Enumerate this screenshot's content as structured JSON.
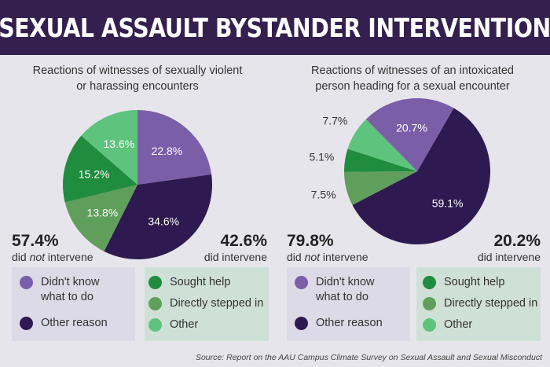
{
  "title": "SEXUAL ASSAULT BYSTANDER INTERVENTION",
  "colors": {
    "header": "#34204f",
    "didnt_know": "#7b5ea8",
    "other_reason": "#2e1a50",
    "sought_help": "#1f8c3e",
    "directly_stepped_in": "#5f9e5b",
    "other": "#5ec37c"
  },
  "legend_not": [
    {
      "label": "Didn't know what to do",
      "line1": "Didn't know",
      "line2": "what to do",
      "color": "#7b5ea8"
    },
    {
      "label": "Other reason",
      "color": "#2e1a50"
    }
  ],
  "legend_did": [
    {
      "label": "Sought help",
      "color": "#1f8c3e"
    },
    {
      "label": "Directly stepped in",
      "color": "#5f9e5b"
    },
    {
      "label": "Other",
      "color": "#5ec37c"
    }
  ],
  "chart_data": [
    {
      "type": "pie",
      "title": "Reactions of witnesses of sexually violent or harassing encounters",
      "title_line1": "Reactions of witnesses of sexually violent",
      "title_line2": "or harassing encounters",
      "slices": [
        {
          "name": "Didn't know what to do",
          "value": 22.8,
          "label": "22.8%",
          "color": "#7b5ea8"
        },
        {
          "name": "Other reason",
          "value": 34.6,
          "label": "34.6%",
          "color": "#2e1a50"
        },
        {
          "name": "Directly stepped in",
          "value": 13.8,
          "label": "13.8%",
          "color": "#5f9e5b"
        },
        {
          "name": "Sought help",
          "value": 15.2,
          "label": "15.2%",
          "color": "#1f8c3e"
        },
        {
          "name": "Other",
          "value": 13.6,
          "label": "13.6%",
          "color": "#5ec37c"
        }
      ],
      "not_intervene": {
        "value": "57.4%",
        "text_pre": "did ",
        "text_em": "not",
        "text_post": " intervene"
      },
      "intervene": {
        "value": "42.6%",
        "text": "did intervene"
      }
    },
    {
      "type": "pie",
      "title": "Reactions of witnesses of an intoxicated person heading for a sexual encounter",
      "title_line1": "Reactions of witnesses of an intoxicated",
      "title_line2": "person heading for a sexual encounter",
      "slices": [
        {
          "name": "Other reason",
          "value": 59.1,
          "label": "59.1%",
          "color": "#2e1a50"
        },
        {
          "name": "Directly stepped in",
          "value": 7.5,
          "label": "7.5%",
          "color": "#5f9e5b"
        },
        {
          "name": "Sought help",
          "value": 5.1,
          "label": "5.1%",
          "color": "#1f8c3e"
        },
        {
          "name": "Other",
          "value": 7.7,
          "label": "7.7%",
          "color": "#5ec37c"
        },
        {
          "name": "Didn't know what to do",
          "value": 20.7,
          "label": "20.7%",
          "color": "#7b5ea8"
        }
      ],
      "not_intervene": {
        "value": "79.8%",
        "text_pre": "did ",
        "text_em": "not",
        "text_post": " intervene"
      },
      "intervene": {
        "value": "20.2%",
        "text": "did intervene"
      }
    }
  ],
  "source": "Source: Report on the AAU Campus Climate Survey on Sexual Assault and Sexual Misconduct"
}
